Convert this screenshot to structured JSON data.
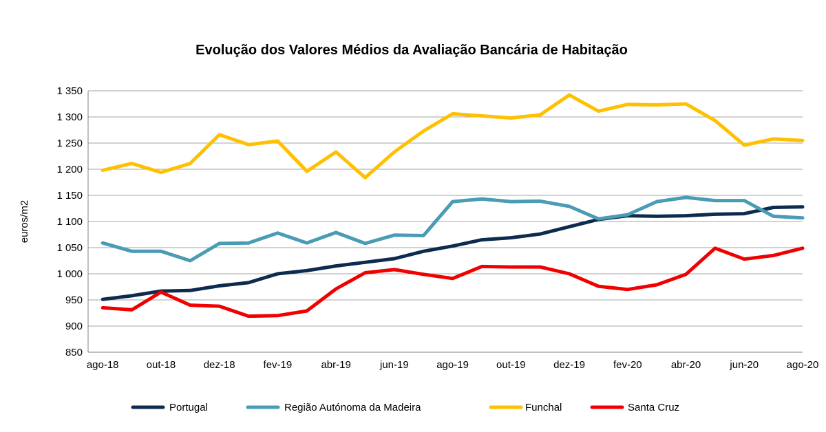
{
  "chart_data": {
    "type": "line",
    "title": "Evolução dos Valores Médios da Avaliação Bancária de Habitação",
    "ylabel": "euros/m2",
    "xlabel": "",
    "ylim": [
      850,
      1350
    ],
    "yticks": [
      850,
      900,
      950,
      1000,
      1050,
      1100,
      1150,
      1200,
      1250,
      1300,
      1350
    ],
    "ytick_labels": [
      "850",
      "900",
      "950",
      "1 000",
      "1 050",
      "1 100",
      "1 150",
      "1 200",
      "1 250",
      "1 300",
      "1 350"
    ],
    "grid": true,
    "legend_position": "bottom",
    "categories": [
      "ago-18",
      "set-18",
      "out-18",
      "nov-18",
      "dez-18",
      "jan-19",
      "fev-19",
      "mar-19",
      "abr-19",
      "mai-19",
      "jun-19",
      "jul-19",
      "ago-19",
      "set-19",
      "out-19",
      "nov-19",
      "dez-19",
      "jan-20",
      "fev-20",
      "mar-20",
      "abr-20",
      "mai-20",
      "jun-20",
      "jul-20",
      "ago-20"
    ],
    "xtick_labels": [
      "ago-18",
      "out-18",
      "dez-18",
      "fev-19",
      "abr-19",
      "jun-19",
      "ago-19",
      "out-19",
      "dez-19",
      "fev-20",
      "abr-20",
      "jun-20",
      "ago-20"
    ],
    "series": [
      {
        "name": "Portugal",
        "color": "#0d2a4f",
        "values": [
          951,
          958,
          967,
          968,
          977,
          983,
          1000,
          1006,
          1015,
          1022,
          1029,
          1043,
          1053,
          1065,
          1069,
          1076,
          1090,
          1104,
          1111,
          1110,
          1111,
          1114,
          1115,
          1127,
          1128
        ]
      },
      {
        "name": "Região Autónoma da Madeira",
        "color": "#4a9bb4",
        "values": [
          1059,
          1043,
          1043,
          1025,
          1058,
          1059,
          1078,
          1059,
          1079,
          1058,
          1074,
          1073,
          1138,
          1143,
          1138,
          1139,
          1129,
          1105,
          1113,
          1138,
          1146,
          1140,
          1140,
          1110,
          1107
        ]
      },
      {
        "name": "Funchal",
        "color": "#ffc000",
        "values": [
          1198,
          1211,
          1194,
          1211,
          1266,
          1247,
          1254,
          1196,
          1233,
          1184,
          1233,
          1273,
          1306,
          1302,
          1298,
          1304,
          1342,
          1311,
          1324,
          1323,
          1325,
          1293,
          1246,
          1258,
          1255
        ]
      },
      {
        "name": "Santa Cruz",
        "color": "#f00000",
        "values": [
          935,
          931,
          965,
          940,
          938,
          919,
          920,
          929,
          971,
          1002,
          1008,
          999,
          991,
          1014,
          1013,
          1013,
          1000,
          976,
          970,
          979,
          999,
          1049,
          1028,
          1035,
          1049
        ]
      }
    ]
  }
}
